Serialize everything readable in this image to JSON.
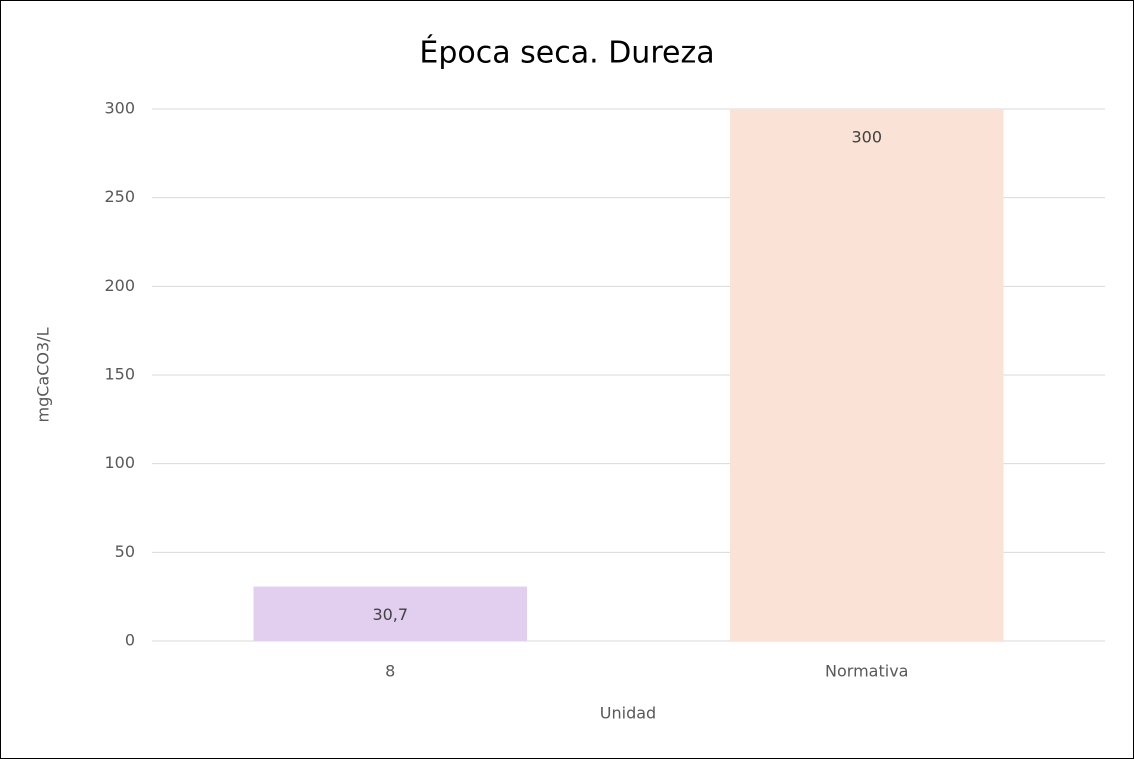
{
  "chart_data": {
    "type": "bar",
    "title": "Época seca. Dureza",
    "categories": [
      "8",
      "Normativa"
    ],
    "values": [
      30.7,
      300
    ],
    "value_labels": [
      "30,7",
      "300"
    ],
    "colors": [
      "#e2cff0",
      "#fae3d6"
    ],
    "xlabel": "Unidad",
    "ylabel": "mgCaCO3/L",
    "ylim": [
      0,
      300
    ],
    "yticks": [
      0,
      50,
      100,
      150,
      200,
      250,
      300
    ],
    "grid": true
  }
}
